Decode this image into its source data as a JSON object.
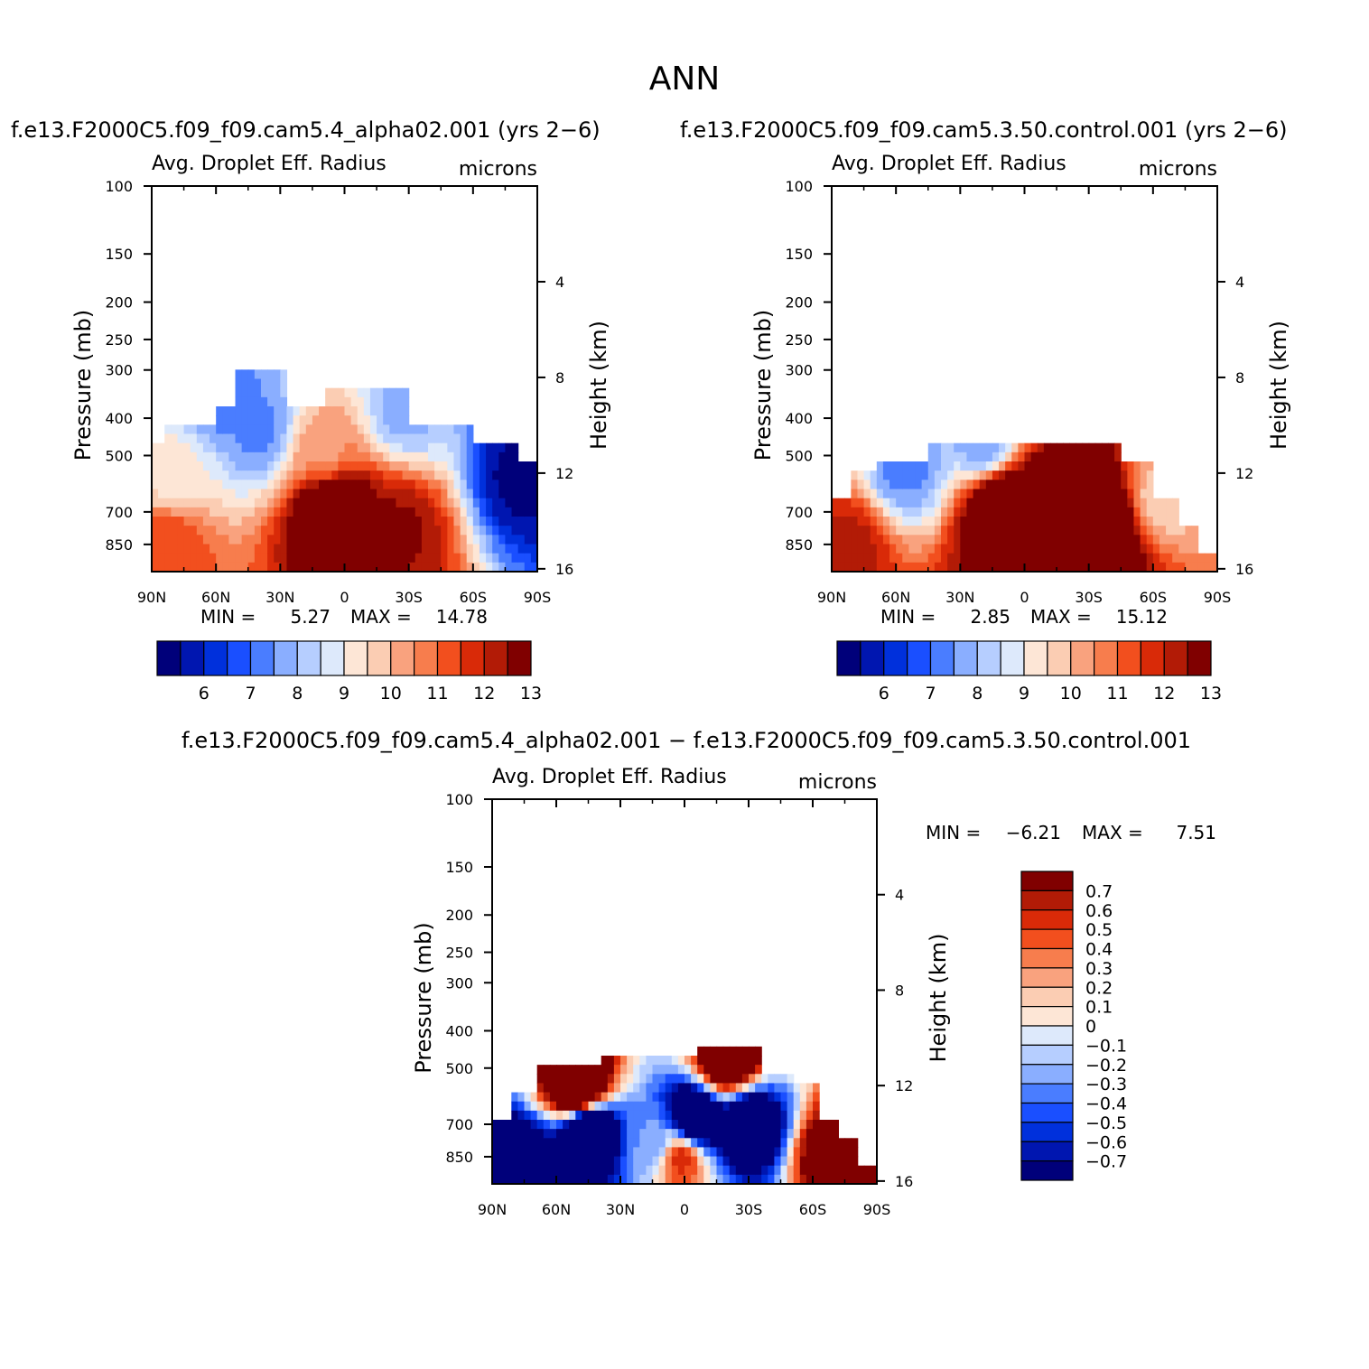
{
  "page_title": "ANN",
  "chart_data": [
    {
      "type": "heatmap",
      "id": "case",
      "run_title": "f.e13.F2000C5.f09_f09.cam5.4_alpha02.001 (yrs 2−6)",
      "variable": "Avg. Droplet Eff. Radius",
      "units": "microns",
      "ylabel": "Pressure (mb)",
      "y2label": "Height (km)",
      "xticks": [
        "90N",
        "60N",
        "30N",
        "0",
        "30S",
        "60S",
        "90S"
      ],
      "xlim": [
        90,
        -90
      ],
      "yticks": [
        100,
        150,
        200,
        250,
        300,
        400,
        500,
        700,
        850
      ],
      "ylim": [
        100,
        1000
      ],
      "y2ticks": [
        16,
        12,
        8,
        4
      ],
      "min_label": "MIN =",
      "min_value": "5.27",
      "max_label": "MAX =",
      "max_value": "14.78",
      "min": 5.27,
      "max": 14.78,
      "colorbar_labels": [
        "6",
        "7",
        "8",
        "9",
        "10",
        "11",
        "12",
        "13"
      ],
      "features": [
        {
          "lat": 5,
          "p": 700,
          "value": 14.78
        },
        {
          "lat": -25,
          "p": 780,
          "value": 12.6
        },
        {
          "lat": 82,
          "p": 880,
          "value": 11.5
        },
        {
          "lat": 10,
          "p": 480,
          "value": 10.3
        },
        {
          "lat": 40,
          "p": 430,
          "value": 7.3
        },
        {
          "lat": 60,
          "p": 340,
          "value": 7.0
        },
        {
          "lat": -28,
          "p": 380,
          "value": 7.8
        },
        {
          "lat": -84,
          "p": 560,
          "value": 5.27
        },
        {
          "lat": 80,
          "p": 540,
          "value": 9.2
        }
      ]
    },
    {
      "type": "heatmap",
      "id": "control",
      "run_title": "f.e13.F2000C5.f09_f09.cam5.3.50.control.001 (yrs 2−6)",
      "variable": "Avg. Droplet Eff. Radius",
      "units": "microns",
      "ylabel": "Pressure (mb)",
      "y2label": "Height (km)",
      "xticks": [
        "90N",
        "60N",
        "30N",
        "0",
        "30S",
        "60S",
        "90S"
      ],
      "xlim": [
        90,
        -90
      ],
      "yticks": [
        100,
        150,
        200,
        250,
        300,
        400,
        500,
        700,
        850
      ],
      "ylim": [
        100,
        1000
      ],
      "y2ticks": [
        16,
        12,
        8,
        4
      ],
      "min_label": "MIN =",
      "min_value": "2.85",
      "max_label": "MAX =",
      "max_value": "15.12",
      "min": 2.85,
      "max": 15.12,
      "colorbar_labels": [
        "6",
        "7",
        "8",
        "9",
        "10",
        "11",
        "12",
        "13"
      ],
      "features": [
        {
          "lat": 10,
          "p": 690,
          "value": 14.6
        },
        {
          "lat": -10,
          "p": 700,
          "value": 14.4
        },
        {
          "lat": -35,
          "p": 760,
          "value": 15.12
        },
        {
          "lat": 82,
          "p": 850,
          "value": 12.2
        },
        {
          "lat": 55,
          "p": 540,
          "value": 7.3
        },
        {
          "lat": 20,
          "p": 460,
          "value": 7.6
        },
        {
          "lat": -65,
          "p": 640,
          "value": 9.6
        }
      ]
    },
    {
      "type": "heatmap",
      "id": "difference",
      "run_title": "f.e13.F2000C5.f09_f09.cam5.4_alpha02.001 − f.e13.F2000C5.f09_f09.cam5.3.50.control.001",
      "variable": "Avg. Droplet Eff. Radius",
      "units": "microns",
      "ylabel": "Pressure (mb)",
      "y2label": "Height (km)",
      "xticks": [
        "90N",
        "60N",
        "30N",
        "0",
        "30S",
        "60S",
        "90S"
      ],
      "xlim": [
        90,
        -90
      ],
      "yticks": [
        100,
        150,
        200,
        250,
        300,
        400,
        500,
        700,
        850
      ],
      "ylim": [
        100,
        1000
      ],
      "y2ticks": [
        16,
        12,
        8,
        4
      ],
      "min_label": "MIN =",
      "min_value": "−6.21",
      "max_label": "MAX =",
      "max_value": "7.51",
      "min": -6.21,
      "max": 7.51,
      "colorbar_labels": [
        "0.7",
        "0.6",
        "0.5",
        "0.4",
        "0.3",
        "0.2",
        "0.1",
        "0",
        "−0.1",
        "−0.2",
        "−0.3",
        "−0.4",
        "−0.5",
        "−0.6",
        "−0.7"
      ],
      "features": [
        {
          "lat": 50,
          "p": 560,
          "value": 1.5
        },
        {
          "lat": -20,
          "p": 480,
          "value": 1.2
        },
        {
          "lat": -70,
          "p": 840,
          "value": 1.0
        },
        {
          "lat": 45,
          "p": 740,
          "value": -1.5
        },
        {
          "lat": -5,
          "p": 680,
          "value": -1.3
        },
        {
          "lat": -30,
          "p": 700,
          "value": -1.2
        },
        {
          "lat": 78,
          "p": 860,
          "value": -1.0
        },
        {
          "lat": 2,
          "p": 860,
          "value": 0.6
        },
        {
          "lat": 15,
          "p": 800,
          "value": -0.3
        }
      ]
    }
  ],
  "colors": {
    "full_field_scale": [
      "#00007a",
      "#0016b0",
      "#0030dc",
      "#1a4fff",
      "#4a7dff",
      "#8aaeff",
      "#b6ceff",
      "#dde9fb",
      "#fde6d6",
      "#fbcdb3",
      "#f9a27e",
      "#f77d4d",
      "#f24f1e",
      "#d92a08",
      "#b21b06",
      "#800000"
    ],
    "difference_scale": [
      "#800000",
      "#b21b06",
      "#d92a08",
      "#f24f1e",
      "#f77d4d",
      "#f9a27e",
      "#fbcdb3",
      "#fde6d6",
      "#dde9fb",
      "#b6ceff",
      "#8aaeff",
      "#4a7dff",
      "#1a4fff",
      "#0030dc",
      "#0016b0",
      "#00007a"
    ]
  }
}
